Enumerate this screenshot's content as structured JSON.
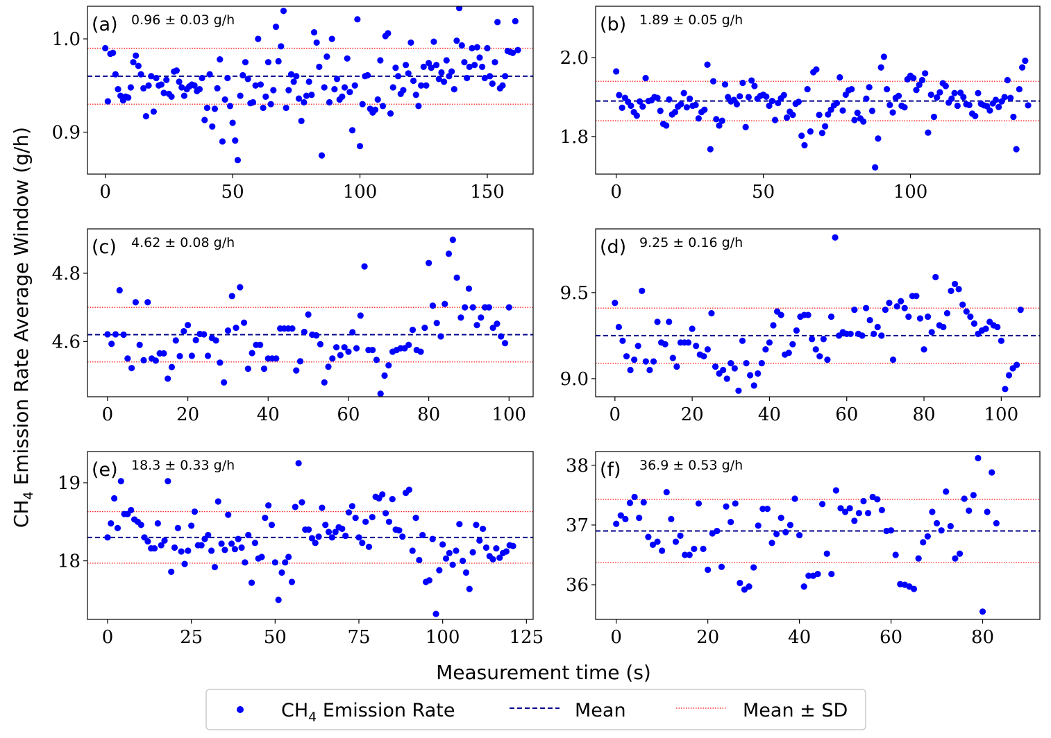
{
  "figure": {
    "xlabel": "Measurement time (s)",
    "ylabel_prefix": "CH",
    "ylabel_sub": "4",
    "ylabel_suffix": " Emission Rate Average Window (g/h)"
  },
  "legend": {
    "items": [
      {
        "kind": "point",
        "prefix": "CH",
        "sub": "4",
        "suffix": " Emission Rate",
        "color": "#0000ff"
      },
      {
        "kind": "dashed",
        "prefix": "Mean",
        "sub": "",
        "suffix": "",
        "color": "#00008b"
      },
      {
        "kind": "dotted",
        "prefix": "Mean ± SD",
        "sub": "",
        "suffix": "",
        "color": "#ff0000"
      }
    ]
  },
  "colors": {
    "points": "#0000ff",
    "mean": "#00008b",
    "sd": "#ff0000"
  },
  "chart_data": [
    {
      "type": "scatter",
      "panel": "(a)",
      "stat": "0.96 ± 0.03 g/h",
      "mean": 0.96,
      "sd": 0.03,
      "xlim": [
        -7,
        168
      ],
      "ylim": [
        0.855,
        1.035
      ],
      "xticks": [
        0,
        50,
        100,
        150
      ],
      "yticks": [
        0.9,
        1.0
      ],
      "yticklabels": [
        "0.9",
        "1.0"
      ],
      "y": [
        0.99,
        0.933,
        0.984,
        0.985,
        0.962,
        0.946,
        0.939,
        0.934,
        0.938,
        0.937,
        0.948,
        0.975,
        0.982,
        0.971,
        0.962,
        0.947,
        0.917,
        0.95,
        0.96,
        0.922,
        0.958,
        0.95,
        0.951,
        0.942,
        0.956,
        0.941,
        0.938,
        0.965,
        0.966,
        0.954,
        0.948,
        0.939,
        0.946,
        0.949,
        0.951,
        0.95,
        0.944,
        0.946,
        0.958,
        0.913,
        0.926,
        0.962,
        0.906,
        0.925,
        0.947,
        0.978,
        0.89,
        0.935,
        0.958,
        0.928,
        0.91,
        0.891,
        0.87,
        0.939,
        0.961,
        0.975,
        0.957,
        0.931,
        0.932,
        0.95,
        1.0,
        0.951,
        0.926,
        0.938,
        0.975,
        0.93,
        0.945,
        1.013,
        0.976,
        0.992,
        1.03,
        0.926,
        0.945,
        0.962,
        0.954,
        0.96,
        0.936,
        0.912,
        0.932,
        0.939,
        0.954,
        0.94,
        1.007,
        0.996,
        0.97,
        0.875,
        0.948,
        0.981,
        0.932,
        1.0,
        0.946,
        0.957,
        0.935,
        0.938,
        0.948,
        0.979,
        0.943,
        0.902,
        0.95,
        1.021,
        0.885,
        0.93,
        0.96,
        0.961,
        0.925,
        0.921,
        0.924,
        0.935,
        0.977,
        0.928,
        1.003,
        1.006,
        0.92,
        0.948,
        0.969,
        0.96,
        0.941,
        0.945,
        0.972,
        0.963,
        0.996,
        0.955,
        0.94,
        0.928,
        0.95,
        0.97,
        0.95,
        0.974,
        0.969,
        0.997,
        0.972,
        0.957,
        0.964,
        0.954,
        0.977,
        0.96,
        0.965,
        0.946,
        0.998,
        1.033,
        0.993,
        0.975,
        0.958,
        0.97,
        0.99,
        0.972,
        0.991,
        0.98,
        0.97,
        0.958,
        0.99,
        0.96,
        0.952,
        0.975,
        1.018,
        0.947,
        0.95,
        0.96,
        0.987,
        0.986,
        0.985,
        1.019,
        0.988
      ]
    },
    {
      "type": "scatter",
      "panel": "(b)",
      "stat": "1.89 ± 0.05 g/h",
      "mean": 1.89,
      "sd": 0.05,
      "xlim": [
        -7,
        144
      ],
      "ylim": [
        1.705,
        2.13
      ],
      "xticks": [
        0,
        50,
        100
      ],
      "yticks": [
        1.8,
        2.0
      ],
      "yticklabels": [
        "1.8",
        "2.0"
      ],
      "y": [
        1.965,
        1.905,
        1.873,
        1.898,
        1.888,
        1.878,
        1.862,
        1.853,
        1.889,
        1.876,
        1.948,
        1.89,
        1.892,
        1.9,
        1.898,
        1.865,
        1.832,
        1.828,
        1.894,
        1.856,
        1.862,
        1.876,
        1.882,
        1.91,
        1.874,
        1.896,
        1.878,
        1.88,
        1.846,
        1.862,
        1.868,
        1.982,
        1.768,
        1.94,
        1.844,
        1.828,
        1.84,
        1.932,
        1.9,
        1.889,
        1.893,
        1.882,
        1.902,
        1.936,
        1.824,
        1.9,
        1.942,
        1.928,
        1.896,
        1.903,
        1.906,
        1.901,
        1.878,
        1.89,
        1.842,
        1.885,
        1.897,
        1.905,
        1.848,
        1.863,
        1.855,
        1.883,
        1.888,
        1.802,
        1.778,
        1.92,
        1.813,
        1.963,
        1.97,
        1.855,
        1.809,
        1.826,
        1.856,
        1.868,
        1.879,
        1.885,
        1.95,
        1.866,
        1.906,
        1.917,
        1.92,
        1.842,
        1.86,
        1.846,
        1.838,
        1.896,
        1.925,
        1.865,
        1.722,
        1.795,
        1.975,
        2.002,
        1.92,
        1.88,
        1.861,
        1.898,
        1.903,
        1.878,
        1.874,
        1.945,
        1.954,
        1.948,
        1.918,
        1.931,
        1.943,
        1.96,
        1.81,
        1.906,
        1.85,
        1.899,
        1.912,
        1.935,
        1.928,
        1.886,
        1.896,
        1.91,
        1.878,
        1.911,
        1.9,
        1.882,
        1.88,
        1.858,
        1.852,
        1.91,
        1.883,
        1.879,
        1.877,
        1.866,
        1.884,
        1.893,
        1.875,
        1.889,
        1.9,
        1.943,
        1.898,
        1.85,
        1.768,
        1.92,
        1.975,
        1.992,
        1.879
      ]
    },
    {
      "type": "scatter",
      "panel": "(c)",
      "stat": "4.62 ± 0.08 g/h",
      "mean": 4.62,
      "sd": 0.08,
      "xlim": [
        -5,
        106
      ],
      "ylim": [
        4.438,
        4.93
      ],
      "xticks": [
        0,
        20,
        40,
        60,
        80,
        100
      ],
      "yticks": [
        4.6,
        4.8
      ],
      "yticklabels": [
        "4.6",
        "4.8"
      ],
      "y": [
        4.621,
        4.593,
        4.621,
        4.75,
        4.62,
        4.55,
        4.522,
        4.715,
        4.59,
        4.545,
        4.715,
        4.55,
        4.544,
        4.565,
        4.565,
        4.491,
        4.525,
        4.603,
        4.557,
        4.63,
        4.648,
        4.558,
        4.604,
        4.622,
        4.621,
        4.558,
        4.61,
        4.603,
        4.538,
        4.48,
        4.632,
        4.733,
        4.64,
        4.759,
        4.655,
        4.52,
        4.566,
        4.59,
        4.59,
        4.52,
        4.55,
        4.55,
        4.55,
        4.638,
        4.638,
        4.638,
        4.638,
        4.515,
        4.542,
        4.628,
        4.679,
        4.62,
        4.618,
        4.592,
        4.48,
        4.526,
        4.55,
        4.583,
        4.56,
        4.583,
        4.57,
        4.627,
        4.58,
        4.676,
        4.82,
        4.575,
        4.575,
        4.546,
        4.447,
        4.5,
        4.53,
        4.57,
        4.575,
        4.58,
        4.58,
        4.59,
        4.634,
        4.575,
        4.57,
        4.64,
        4.83,
        4.705,
        4.654,
        4.615,
        4.71,
        4.857,
        4.898,
        4.787,
        4.67,
        4.7,
        4.755,
        4.7,
        4.648,
        4.67,
        4.7,
        4.7,
        4.64,
        4.652,
        4.615,
        4.595,
        4.7
      ]
    },
    {
      "type": "scatter",
      "panel": "(d)",
      "stat": "9.25 ± 0.16 g/h",
      "mean": 9.25,
      "sd": 0.16,
      "xlim": [
        -5,
        110
      ],
      "ylim": [
        8.895,
        9.87
      ],
      "xticks": [
        0,
        20,
        40,
        60,
        80,
        100
      ],
      "yticks": [
        9.0,
        9.5
      ],
      "yticklabels": [
        "9.0",
        "9.5"
      ],
      "y": [
        9.44,
        9.3,
        9.22,
        9.13,
        9.05,
        9.11,
        9.19,
        9.51,
        9.1,
        9.05,
        9.1,
        9.33,
        9.21,
        9.2,
        9.33,
        9.12,
        9.07,
        9.21,
        9.21,
        9.21,
        9.29,
        9.19,
        9.14,
        9.13,
        9.17,
        9.38,
        9.07,
        9.03,
        9.05,
        9.0,
        9.09,
        9.06,
        8.93,
        9.22,
        9.09,
        9.02,
        8.96,
        9.03,
        9.09,
        9.17,
        9.21,
        9.31,
        9.39,
        9.37,
        9.14,
        9.15,
        9.2,
        9.28,
        9.36,
        9.37,
        9.37,
        9.23,
        9.17,
        9.13,
        9.23,
        9.11,
        9.36,
        9.82,
        9.25,
        9.27,
        9.26,
        9.26,
        9.4,
        9.26,
        9.25,
        9.41,
        9.34,
        9.26,
        9.3,
        9.25,
        9.4,
        9.44,
        9.11,
        9.42,
        9.45,
        9.41,
        9.36,
        9.48,
        9.48,
        9.35,
        9.17,
        9.36,
        9.27,
        9.59,
        9.31,
        9.3,
        9.38,
        9.51,
        9.55,
        9.52,
        9.43,
        9.39,
        9.36,
        9.32,
        9.26,
        9.28,
        9.29,
        9.33,
        9.31,
        9.3,
        9.22,
        8.94,
        9.02,
        9.06,
        9.08,
        9.4
      ]
    },
    {
      "type": "scatter",
      "panel": "(e)",
      "stat": "18.3 ± 0.33 g/h",
      "mean": 18.3,
      "sd": 0.33,
      "xlim": [
        -6,
        127
      ],
      "ylim": [
        17.25,
        19.4
      ],
      "xticks": [
        0,
        25,
        50,
        75,
        100,
        125
      ],
      "yticks": [
        18,
        19
      ],
      "yticklabels": [
        "18",
        "19"
      ],
      "y": [
        18.3,
        18.48,
        18.8,
        18.42,
        19.02,
        18.6,
        18.6,
        18.65,
        18.53,
        18.5,
        18.46,
        18.3,
        18.25,
        18.16,
        18.16,
        18.48,
        18.2,
        18.26,
        19.02,
        17.86,
        18.17,
        18.42,
        18.12,
        17.96,
        18.13,
        18.45,
        18.63,
        18.2,
        18.2,
        18.28,
        18.33,
        18.13,
        17.92,
        18.76,
        18.22,
        18.14,
        18.59,
        18.22,
        18.15,
        18.28,
        18.17,
        17.98,
        18.33,
        17.72,
        18.23,
        18.03,
        18.05,
        18.55,
        18.71,
        18.46,
        17.98,
        17.5,
        17.85,
        17.98,
        18.05,
        17.73,
        18.69,
        19.25,
        18.75,
        18.4,
        18.4,
        18.29,
        18.23,
        18.31,
        18.68,
        18.46,
        18.37,
        18.3,
        18.37,
        18.43,
        18.41,
        18.32,
        18.62,
        18.7,
        18.55,
        18.3,
        18.23,
        18.5,
        18.18,
        18.56,
        18.82,
        18.8,
        18.85,
        18.61,
        18.5,
        18.79,
        18.4,
        18.39,
        18.31,
        18.87,
        18.91,
        18.13,
        18.55,
        18.01,
        18.33,
        17.73,
        17.75,
        18.28,
        17.32,
        17.88,
        18.21,
        18.03,
        18.1,
        17.95,
        18.13,
        18.47,
        18.0,
        17.85,
        17.64,
        18.11,
        18.46,
        18.26,
        18.41,
        18.17,
        18.06,
        18.02,
        18.16,
        18.04,
        18.1,
        18.12,
        18.2,
        18.19
      ]
    },
    {
      "type": "scatter",
      "panel": "(f)",
      "stat": "36.9 ± 0.53 g/h",
      "mean": 36.9,
      "sd": 0.53,
      "xlim": [
        -4.5,
        92.5
      ],
      "ylim": [
        35.42,
        38.23
      ],
      "xticks": [
        0,
        20,
        40,
        60,
        80
      ],
      "yticks": [
        36,
        37,
        38
      ],
      "yticklabels": [
        "36",
        "37",
        "38"
      ],
      "y": [
        37.02,
        37.16,
        37.1,
        37.37,
        37.47,
        37.12,
        37.38,
        36.8,
        36.67,
        36.72,
        36.57,
        37.55,
        37.1,
        36.72,
        36.82,
        36.5,
        36.5,
        36.6,
        37.36,
        36.6,
        36.25,
        36.86,
        36.9,
        36.3,
        37.31,
        37.05,
        37.36,
        36.03,
        35.92,
        35.97,
        36.29,
        36.99,
        37.27,
        37.27,
        36.7,
        36.85,
        37.12,
        36.88,
        37.0,
        37.44,
        36.83,
        35.97,
        36.15,
        36.15,
        36.18,
        37.35,
        36.52,
        36.18,
        37.58,
        37.28,
        37.22,
        37.28,
        37.07,
        37.2,
        37.4,
        37.2,
        37.47,
        37.43,
        37.25,
        36.9,
        36.91,
        36.5,
        36.01,
        36.0,
        35.97,
        35.93,
        36.44,
        36.71,
        36.81,
        37.22,
        37.03,
        36.91,
        37.56,
        36.98,
        36.44,
        36.52,
        37.44,
        37.24,
        37.5,
        38.12,
        35.55,
        37.22,
        37.88,
        37.03
      ]
    }
  ]
}
